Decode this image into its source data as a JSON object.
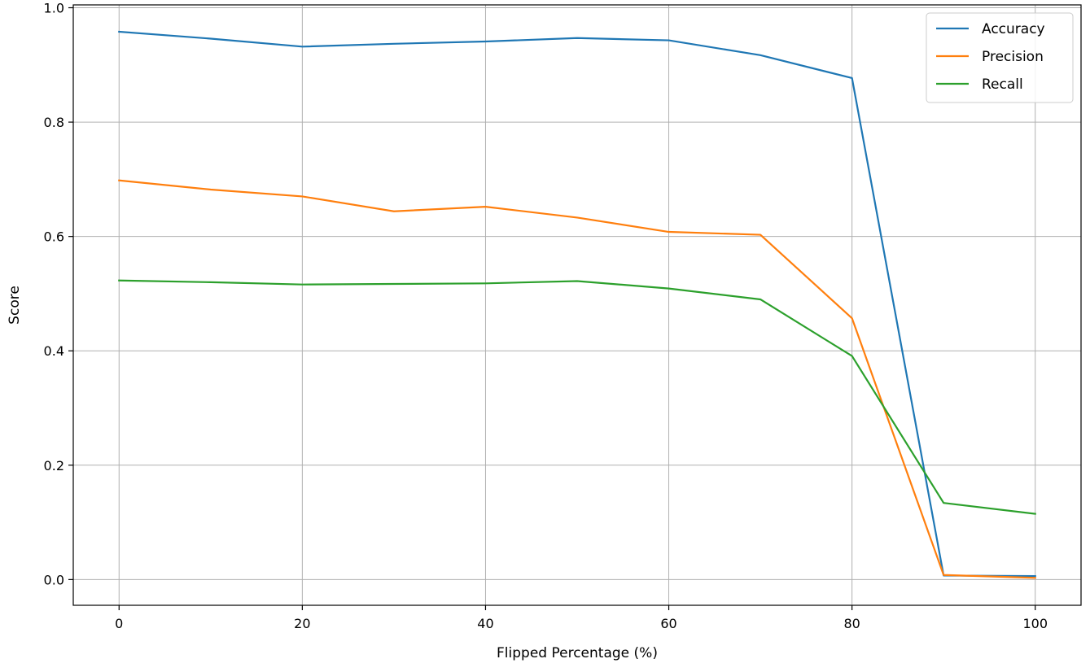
{
  "chart_data": {
    "type": "line",
    "title": "",
    "xlabel": "Flipped Percentage (%)",
    "ylabel": "Score",
    "xlim": [
      -5,
      105
    ],
    "ylim": [
      -0.045,
      1.005
    ],
    "xticks": [
      0,
      20,
      40,
      60,
      80,
      100
    ],
    "yticks": [
      0.0,
      0.2,
      0.4,
      0.6,
      0.8,
      1.0
    ],
    "xtick_labels": [
      "0",
      "20",
      "40",
      "60",
      "80",
      "100"
    ],
    "ytick_labels": [
      "0.0",
      "0.2",
      "0.4",
      "0.6",
      "0.8",
      "1.0"
    ],
    "grid": true,
    "legend_position": "top-right",
    "x": [
      0,
      10,
      20,
      30,
      40,
      50,
      60,
      70,
      80,
      90,
      100
    ],
    "series": [
      {
        "name": "Accuracy",
        "color": "#1f77b4",
        "values": [
          0.958,
          0.946,
          0.932,
          0.937,
          0.941,
          0.947,
          0.943,
          0.917,
          0.877,
          0.007,
          0.006
        ]
      },
      {
        "name": "Precision",
        "color": "#ff7f0e",
        "values": [
          0.698,
          0.682,
          0.67,
          0.644,
          0.652,
          0.633,
          0.608,
          0.603,
          0.457,
          0.008,
          0.003
        ]
      },
      {
        "name": "Recall",
        "color": "#2ca02c",
        "values": [
          0.523,
          0.52,
          0.516,
          0.517,
          0.518,
          0.522,
          0.509,
          0.49,
          0.391,
          0.134,
          0.115
        ]
      }
    ]
  }
}
